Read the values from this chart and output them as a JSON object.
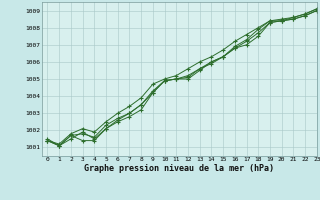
{
  "title": "Graphe pression niveau de la mer (hPa)",
  "bg_color": "#c8e8e8",
  "plot_bg_color": "#d8f0ee",
  "grid_color": "#a8c8c8",
  "line_color": "#2d6e2d",
  "xlim": [
    -0.5,
    23
  ],
  "ylim": [
    1000.5,
    1009.5
  ],
  "xticks": [
    0,
    1,
    2,
    3,
    4,
    5,
    6,
    7,
    8,
    9,
    10,
    11,
    12,
    13,
    14,
    15,
    16,
    17,
    18,
    19,
    20,
    21,
    22,
    23
  ],
  "yticks": [
    1001,
    1002,
    1003,
    1004,
    1005,
    1006,
    1007,
    1008,
    1009
  ],
  "series": [
    [
      1001.5,
      1001.1,
      1001.5,
      1001.9,
      1001.5,
      1002.1,
      1002.5,
      1002.8,
      1003.2,
      1004.2,
      1004.9,
      1005.0,
      1005.0,
      1005.5,
      1006.0,
      1006.3,
      1006.8,
      1007.0,
      1007.5,
      1008.3,
      1008.4,
      1008.5,
      1008.7,
      1009.0
    ],
    [
      1001.4,
      1001.1,
      1001.7,
      1001.8,
      1001.6,
      1002.3,
      1002.7,
      1003.0,
      1003.5,
      1004.3,
      1004.9,
      1005.0,
      1005.1,
      1005.6,
      1006.0,
      1006.3,
      1006.8,
      1007.2,
      1007.7,
      1008.3,
      1008.4,
      1008.5,
      1008.7,
      1009.0
    ],
    [
      1001.4,
      1001.2,
      1001.8,
      1002.1,
      1001.9,
      1002.5,
      1003.0,
      1003.4,
      1003.9,
      1004.7,
      1005.0,
      1005.2,
      1005.6,
      1006.0,
      1006.3,
      1006.7,
      1007.2,
      1007.6,
      1008.0,
      1008.4,
      1008.5,
      1008.6,
      1008.8,
      1009.1
    ],
    [
      1001.4,
      1001.1,
      1001.7,
      1001.4,
      1001.4,
      1002.1,
      1002.6,
      1003.0,
      1003.5,
      1004.2,
      1004.9,
      1005.0,
      1005.2,
      1005.6,
      1005.9,
      1006.3,
      1006.9,
      1007.3,
      1007.9,
      1008.4,
      1008.4,
      1008.6,
      1008.8,
      1009.1
    ]
  ]
}
